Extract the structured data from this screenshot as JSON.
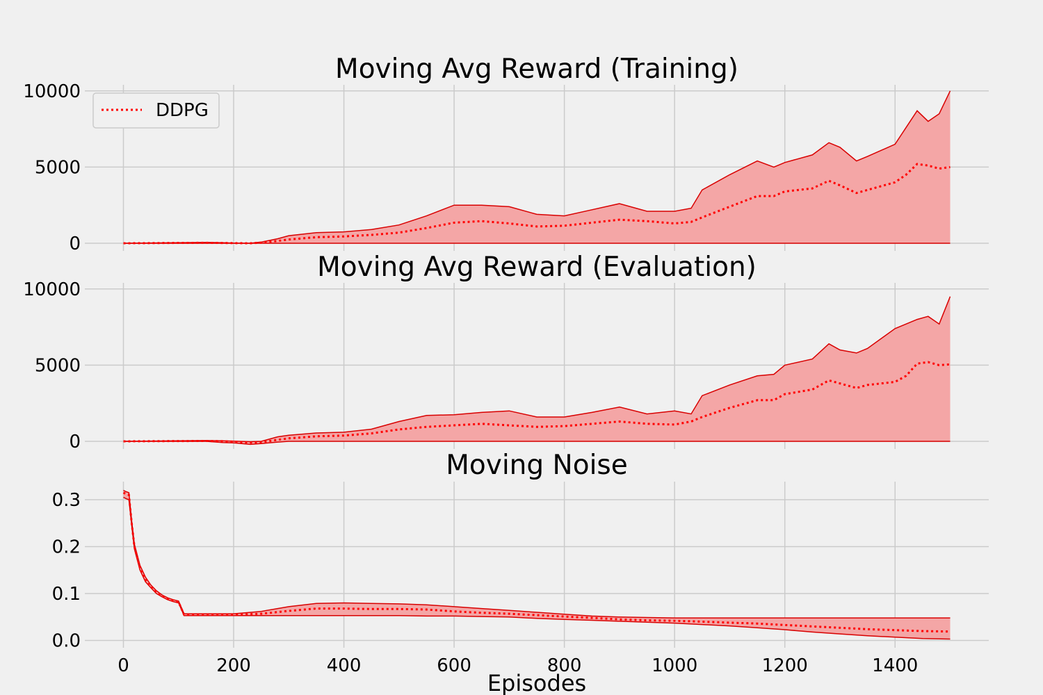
{
  "colors": {
    "background": "#f0f0f0",
    "grid": "#cbcbcb",
    "line": "#ff0000",
    "fill": "#f4a6a6",
    "band_edge": "#d80000"
  },
  "chart_data": [
    {
      "type": "line",
      "title": "Moving Avg Reward (Training)",
      "xlabel": "",
      "ylabel": "",
      "xlim": [
        -70,
        1570
      ],
      "ylim": [
        -500,
        10400
      ],
      "xticks": [
        0,
        200,
        400,
        600,
        800,
        1000,
        1200,
        1400
      ],
      "yticks": [
        0,
        5000,
        10000
      ],
      "ytick_labels": [
        "0",
        "5000",
        "10000"
      ],
      "grid": true,
      "legend": {
        "position": "top-left",
        "entries": [
          "DDPG"
        ]
      },
      "series": [
        {
          "name": "DDPG",
          "style": "dotted",
          "x": [
            0,
            50,
            100,
            150,
            180,
            200,
            230,
            250,
            280,
            300,
            350,
            400,
            450,
            500,
            550,
            600,
            650,
            700,
            750,
            800,
            850,
            900,
            950,
            1000,
            1030,
            1050,
            1100,
            1150,
            1180,
            1200,
            1250,
            1280,
            1300,
            1330,
            1350,
            1400,
            1420,
            1440,
            1460,
            1480,
            1500
          ],
          "mean": [
            0,
            10,
            25,
            30,
            20,
            10,
            0,
            40,
            150,
            250,
            400,
            450,
            550,
            700,
            1000,
            1350,
            1450,
            1300,
            1100,
            1150,
            1350,
            1550,
            1450,
            1300,
            1400,
            1700,
            2400,
            3100,
            3100,
            3400,
            3600,
            4100,
            3800,
            3300,
            3500,
            4000,
            4500,
            5200,
            5100,
            4900,
            5000
          ],
          "upper": [
            0,
            20,
            40,
            60,
            40,
            15,
            0,
            80,
            300,
            500,
            700,
            750,
            900,
            1200,
            1800,
            2500,
            2500,
            2400,
            1900,
            1800,
            2200,
            2600,
            2100,
            2100,
            2300,
            3500,
            4500,
            5400,
            5000,
            5300,
            5800,
            6600,
            6300,
            5400,
            5700,
            6500,
            7600,
            8700,
            8000,
            8500,
            10000
          ],
          "lower": [
            0,
            0,
            0,
            0,
            0,
            0,
            0,
            0,
            0,
            0,
            0,
            0,
            0,
            0,
            0,
            0,
            0,
            0,
            0,
            0,
            0,
            0,
            0,
            0,
            0,
            0,
            0,
            0,
            0,
            0,
            0,
            0,
            0,
            0,
            0,
            0,
            0,
            0,
            0,
            0,
            0
          ]
        }
      ]
    },
    {
      "type": "line",
      "title": "Moving Avg Reward (Evaluation)",
      "xlabel": "",
      "ylabel": "",
      "xlim": [
        -70,
        1570
      ],
      "ylim": [
        -500,
        10400
      ],
      "xticks": [
        0,
        200,
        400,
        600,
        800,
        1000,
        1200,
        1400
      ],
      "yticks": [
        0,
        5000,
        10000
      ],
      "ytick_labels": [
        "0",
        "5000",
        "10000"
      ],
      "grid": true,
      "series": [
        {
          "name": "DDPG",
          "style": "dotted",
          "x": [
            0,
            50,
            100,
            150,
            180,
            200,
            230,
            250,
            280,
            300,
            350,
            400,
            450,
            500,
            550,
            600,
            650,
            700,
            750,
            800,
            850,
            900,
            950,
            1000,
            1030,
            1050,
            1100,
            1150,
            1180,
            1200,
            1250,
            1280,
            1300,
            1330,
            1350,
            1400,
            1420,
            1440,
            1460,
            1480,
            1500
          ],
          "mean": [
            0,
            10,
            20,
            25,
            10,
            -20,
            -80,
            -60,
            100,
            200,
            330,
            380,
            520,
            780,
            950,
            1050,
            1150,
            1050,
            950,
            1000,
            1150,
            1300,
            1150,
            1100,
            1300,
            1600,
            2200,
            2700,
            2700,
            3100,
            3400,
            4000,
            3800,
            3500,
            3700,
            3900,
            4300,
            5100,
            5200,
            5000,
            5050
          ],
          "upper": [
            0,
            20,
            40,
            50,
            40,
            10,
            -20,
            0,
            300,
            400,
            550,
            600,
            800,
            1300,
            1700,
            1750,
            1900,
            2000,
            1600,
            1600,
            1900,
            2250,
            1800,
            2000,
            1800,
            3000,
            3700,
            4300,
            4400,
            5000,
            5400,
            6400,
            6000,
            5800,
            6100,
            7400,
            7700,
            8000,
            8200,
            7700,
            9500
          ],
          "lower": [
            0,
            0,
            0,
            0,
            -80,
            -100,
            -200,
            -150,
            -50,
            0,
            0,
            0,
            0,
            0,
            0,
            0,
            0,
            0,
            0,
            0,
            0,
            0,
            0,
            0,
            0,
            0,
            0,
            0,
            0,
            0,
            0,
            0,
            0,
            0,
            0,
            0,
            0,
            0,
            0,
            0,
            0
          ]
        }
      ]
    },
    {
      "type": "line",
      "title": "Moving Noise",
      "xlabel": "Episodes",
      "ylabel": "",
      "xlim": [
        -70,
        1570
      ],
      "ylim": [
        -0.0155,
        0.3385
      ],
      "xticks": [
        0,
        200,
        400,
        600,
        800,
        1000,
        1200,
        1400
      ],
      "xtick_labels": [
        "0",
        "200",
        "400",
        "600",
        "800",
        "1000",
        "1200",
        "1400"
      ],
      "yticks": [
        0.0,
        0.1,
        0.2,
        0.3
      ],
      "ytick_labels": [
        "0.0",
        "0.1",
        "0.2",
        "0.3"
      ],
      "grid": true,
      "series": [
        {
          "name": "DDPG",
          "style": "dotted",
          "x": [
            0,
            5,
            10,
            15,
            20,
            30,
            40,
            50,
            60,
            70,
            80,
            90,
            100,
            110,
            150,
            200,
            250,
            300,
            350,
            400,
            450,
            500,
            550,
            600,
            650,
            700,
            750,
            800,
            850,
            900,
            950,
            1000,
            1050,
            1100,
            1150,
            1200,
            1250,
            1300,
            1350,
            1400,
            1450,
            1500
          ],
          "mean": [
            0.315,
            0.312,
            0.31,
            0.25,
            0.2,
            0.155,
            0.13,
            0.115,
            0.103,
            0.095,
            0.089,
            0.085,
            0.082,
            0.055,
            0.055,
            0.055,
            0.057,
            0.063,
            0.068,
            0.068,
            0.067,
            0.067,
            0.066,
            0.062,
            0.059,
            0.057,
            0.054,
            0.051,
            0.048,
            0.045,
            0.043,
            0.042,
            0.04,
            0.038,
            0.036,
            0.033,
            0.03,
            0.027,
            0.024,
            0.022,
            0.02,
            0.019
          ],
          "upper": [
            0.32,
            0.317,
            0.315,
            0.255,
            0.205,
            0.16,
            0.135,
            0.118,
            0.106,
            0.097,
            0.091,
            0.087,
            0.084,
            0.057,
            0.057,
            0.057,
            0.062,
            0.072,
            0.079,
            0.08,
            0.079,
            0.078,
            0.076,
            0.072,
            0.068,
            0.064,
            0.06,
            0.056,
            0.052,
            0.05,
            0.049,
            0.048,
            0.048,
            0.048,
            0.048,
            0.048,
            0.048,
            0.048,
            0.048,
            0.048,
            0.048,
            0.048
          ],
          "lower": [
            0.305,
            0.302,
            0.3,
            0.245,
            0.195,
            0.15,
            0.125,
            0.112,
            0.1,
            0.093,
            0.087,
            0.083,
            0.08,
            0.053,
            0.053,
            0.053,
            0.053,
            0.053,
            0.053,
            0.053,
            0.053,
            0.053,
            0.052,
            0.052,
            0.051,
            0.05,
            0.047,
            0.045,
            0.043,
            0.041,
            0.039,
            0.037,
            0.034,
            0.031,
            0.027,
            0.023,
            0.018,
            0.014,
            0.01,
            0.007,
            0.004,
            0.003
          ]
        }
      ]
    }
  ]
}
